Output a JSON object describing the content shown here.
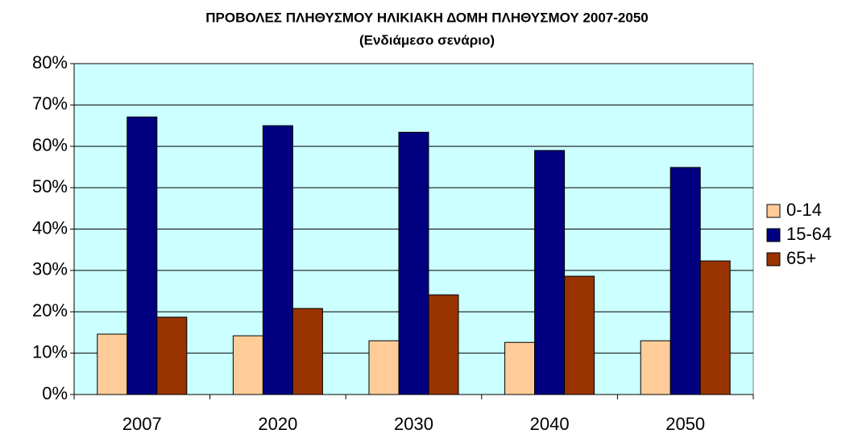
{
  "chart_data": {
    "type": "bar",
    "title": "ΠΡΟΒΟΛΕΣ ΠΛΗΘΥΣΜΟΥ ΗΛΙΚΙΑΚΗ ΔΟΜΗ ΠΛΗΘΥΣΜΟΥ 2007-2050",
    "subtitle": "(Ενδιάμεσο σενάριο)",
    "categories": [
      "2007",
      "2020",
      "2030",
      "2040",
      "2050"
    ],
    "series": [
      {
        "name": "0-14",
        "color": "#ffcc99",
        "values": [
          14.6,
          14.2,
          13.0,
          12.6,
          13.0
        ]
      },
      {
        "name": "15-64",
        "color": "#000080",
        "values": [
          67.1,
          65.0,
          63.4,
          59.0,
          54.9
        ]
      },
      {
        "name": "65+",
        "color": "#993300",
        "values": [
          18.7,
          20.8,
          24.1,
          28.6,
          32.3
        ]
      }
    ],
    "ylim": [
      0,
      80
    ],
    "yticks": [
      {
        "value": 0,
        "label": "0%"
      },
      {
        "value": 10,
        "label": "10%"
      },
      {
        "value": 20,
        "label": "20%"
      },
      {
        "value": 30,
        "label": "30%"
      },
      {
        "value": 40,
        "label": "40%"
      },
      {
        "value": 50,
        "label": "50%"
      },
      {
        "value": 60,
        "label": "60%"
      },
      {
        "value": 70,
        "label": "70%"
      },
      {
        "value": 80,
        "label": "80%"
      }
    ],
    "grid": true,
    "legend": "right",
    "plot_background": "#ccffff"
  }
}
